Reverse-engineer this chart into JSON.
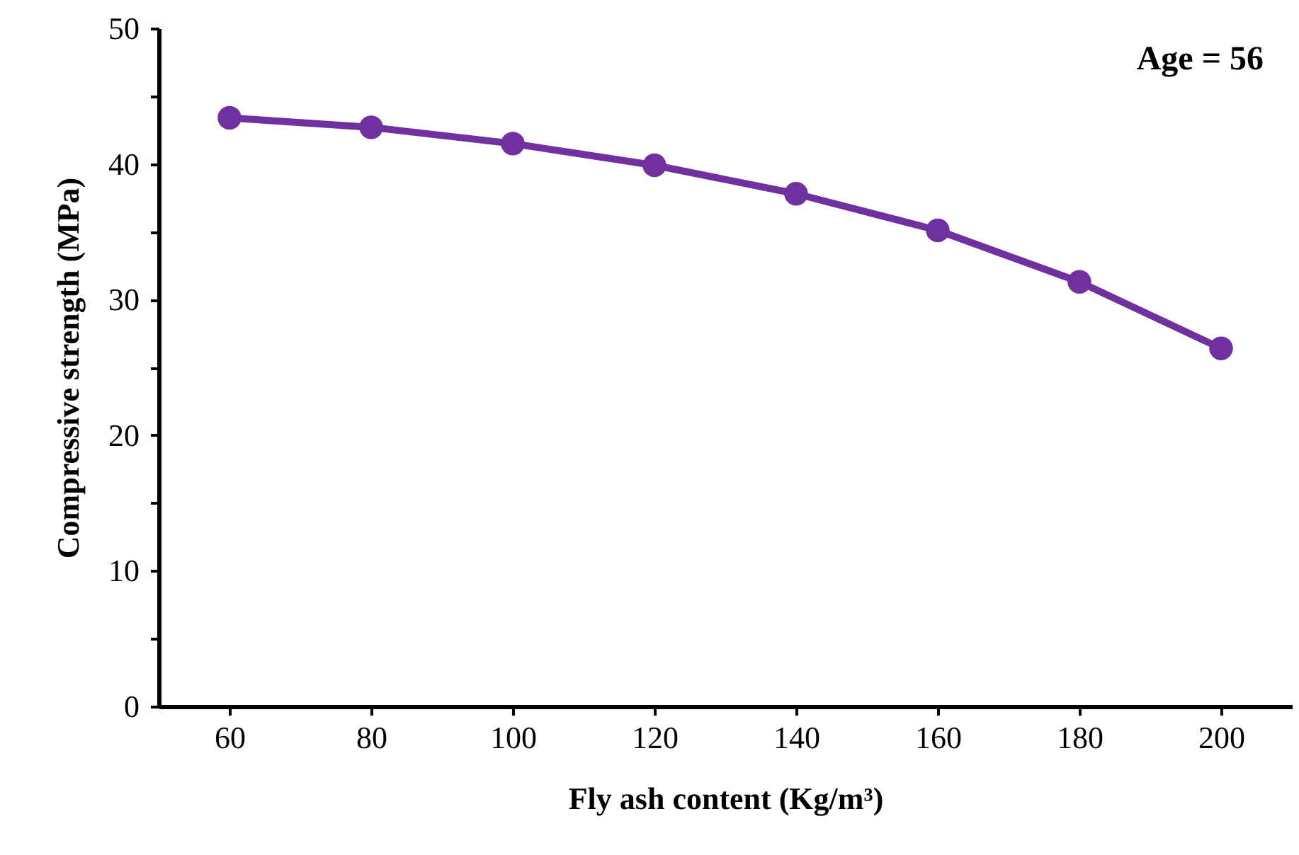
{
  "chart_data": {
    "type": "line",
    "xlabel": "Fly ash content (Kg/m³)",
    "ylabel": "Compressive strength (MPa)",
    "annotations": [
      "Age = 56"
    ],
    "x": [
      60,
      80,
      100,
      120,
      140,
      160,
      180,
      200
    ],
    "series": [
      {
        "color": "#7030a0",
        "values": [
          43.4,
          42.7,
          41.5,
          39.9,
          37.8,
          35.1,
          31.3,
          26.4
        ]
      }
    ],
    "xlim": [
      50,
      210
    ],
    "xticks": [
      60,
      80,
      100,
      120,
      140,
      160,
      180,
      200
    ],
    "ylim": [
      0,
      50
    ],
    "yticks": [
      0,
      {
        "value": 5,
        "label": null
      },
      10,
      {
        "value": 15,
        "label": null
      },
      20,
      {
        "value": 25,
        "label": null
      },
      30,
      {
        "value": 35,
        "label": null
      },
      40,
      {
        "value": 45,
        "label": null
      },
      50
    ],
    "grid": false,
    "marker": "circle",
    "line_style": "solid"
  }
}
